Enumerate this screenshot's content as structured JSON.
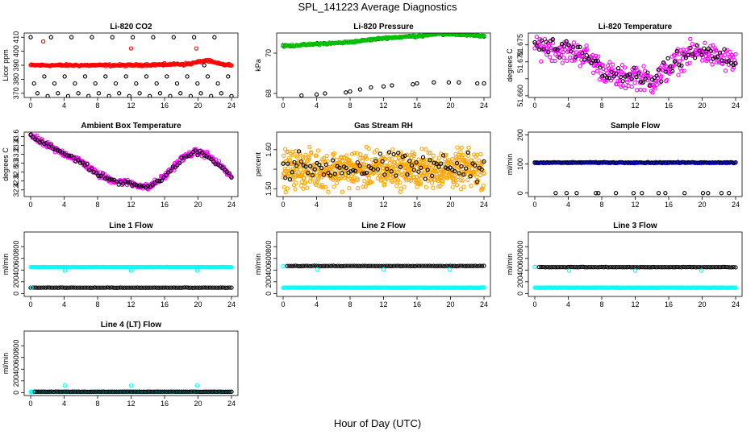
{
  "title": "SPL_141223  Average Diagnostics",
  "x_axis_label": "Hour of Day (UTC)",
  "chart_data": [
    {
      "id": "co2",
      "type": "scatter",
      "title": "Li-820 CO2",
      "ylabel": "Licor ppm",
      "xlim": [
        0,
        24
      ],
      "ylim": [
        367,
        413
      ],
      "xticks": [
        0,
        4,
        8,
        12,
        16,
        20,
        24
      ],
      "yticks": [
        370,
        380,
        390,
        400,
        410
      ],
      "series": [
        {
          "name": "black-circles",
          "color": "#000000",
          "model": "cycle",
          "levels": [
            410,
            377,
            370,
            390,
            382,
            368
          ],
          "n": 60
        },
        {
          "name": "red-circles",
          "color": "#ff0000",
          "model": "trend",
          "kx": [
            0,
            12,
            19,
            21,
            22.5,
            24
          ],
          "ky": [
            390,
            390,
            391,
            393.5,
            391,
            390
          ],
          "jitter": 0.6,
          "n": 220
        },
        {
          "name": "red-outliers",
          "color": "#ff0000",
          "model": "points",
          "x": [
            1.5,
            12,
            19.8
          ],
          "y": [
            407,
            402,
            402
          ]
        }
      ]
    },
    {
      "id": "pressure",
      "type": "scatter",
      "title": "Li-820 Pressure",
      "ylabel": "kPa",
      "xlim": [
        0,
        24
      ],
      "ylim": [
        67.8,
        71.0
      ],
      "xticks": [
        0,
        4,
        8,
        12,
        16,
        20,
        24
      ],
      "yticks": [
        68,
        70
      ],
      "series": [
        {
          "name": "black-circles",
          "color": "#000000",
          "model": "points",
          "x": [
            2.2,
            4,
            5,
            7.5,
            8,
            9.2,
            10.5,
            12,
            13,
            15.5,
            16,
            18,
            19.8,
            21,
            23.2,
            24
          ],
          "y": [
            67.9,
            67.95,
            68.0,
            68.05,
            68.1,
            68.2,
            68.3,
            68.35,
            68.4,
            68.45,
            68.5,
            68.55,
            68.55,
            68.55,
            68.5,
            68.5
          ]
        },
        {
          "name": "black-trend",
          "color": "#000000",
          "model": "trend",
          "kx": [
            0,
            4,
            8,
            12,
            16,
            18,
            20,
            24
          ],
          "ky": [
            70.35,
            70.45,
            70.55,
            70.75,
            70.85,
            70.95,
            70.95,
            70.85
          ],
          "jitter": 0.03,
          "n": 60
        },
        {
          "name": "green-circles",
          "color": "#00c000",
          "model": "trend",
          "kx": [
            0,
            4,
            8,
            12,
            16,
            18,
            20,
            24
          ],
          "ky": [
            70.35,
            70.45,
            70.55,
            70.75,
            70.85,
            70.95,
            70.95,
            70.85
          ],
          "jitter": 0.04,
          "n": 200
        }
      ]
    },
    {
      "id": "temperature",
      "type": "scatter",
      "title": "Li-820 Temperature",
      "ylabel": "degrees C",
      "xlim": [
        0,
        24
      ],
      "ylim": [
        51.6595,
        51.6785
      ],
      "xticks": [
        0,
        4,
        8,
        12,
        16,
        20,
        24
      ],
      "yticks": [
        51.66,
        51.665,
        51.67,
        51.675
      ],
      "ytick_labels": [
        "51.660",
        "",
        "51.670",
        "51.675"
      ],
      "series": [
        {
          "name": "magenta-circles",
          "color": "#ff00ff",
          "model": "trend",
          "kx": [
            0,
            2,
            4,
            6,
            8,
            10,
            12,
            14,
            16,
            18,
            20,
            22,
            24
          ],
          "ky": [
            51.675,
            51.674,
            51.673,
            51.672,
            51.668,
            51.665,
            51.666,
            51.664,
            51.668,
            51.672,
            51.673,
            51.671,
            51.67
          ],
          "jitter": 0.003,
          "n": 320
        },
        {
          "name": "black-circles",
          "color": "#000000",
          "model": "trend",
          "kx": [
            0,
            2,
            4,
            6,
            8,
            10,
            12,
            14,
            16,
            18,
            20,
            22,
            24
          ],
          "ky": [
            51.675,
            51.674,
            51.673,
            51.672,
            51.668,
            51.665,
            51.666,
            51.664,
            51.668,
            51.672,
            51.673,
            51.671,
            51.67
          ],
          "jitter": 0.0025,
          "n": 90
        }
      ]
    },
    {
      "id": "ambient",
      "type": "scatter",
      "title": "Ambient Box Temperature",
      "ylabel": "degrees C",
      "xlim": [
        0,
        24
      ],
      "ylim": [
        32.25,
        33.7
      ],
      "xticks": [
        0,
        4,
        8,
        12,
        16,
        20,
        24
      ],
      "yticks": [
        32.4,
        32.6,
        32.8,
        33.0,
        33.2,
        33.4,
        33.6
      ],
      "series": [
        {
          "name": "magenta-circles",
          "color": "#ff00ff",
          "model": "trend",
          "kx": [
            0,
            1,
            3,
            6,
            8,
            10,
            12,
            14,
            16,
            18,
            19.5,
            21,
            23,
            24
          ],
          "ky": [
            33.65,
            33.5,
            33.3,
            33.05,
            32.75,
            32.6,
            32.55,
            32.45,
            32.7,
            33.1,
            33.25,
            33.2,
            32.9,
            32.65
          ],
          "jitter": 0.06,
          "n": 320
        },
        {
          "name": "black-circles",
          "color": "#000000",
          "model": "trend",
          "kx": [
            0,
            1,
            3,
            6,
            8,
            10,
            12,
            14,
            16,
            18,
            19.5,
            21,
            23,
            24
          ],
          "ky": [
            33.65,
            33.5,
            33.3,
            33.05,
            32.75,
            32.6,
            32.55,
            32.45,
            32.7,
            33.1,
            33.25,
            33.2,
            32.9,
            32.65
          ],
          "jitter": 0.05,
          "n": 90
        }
      ]
    },
    {
      "id": "rh",
      "type": "scatter",
      "title": "Gas Stream RH",
      "ylabel": "percent",
      "xlim": [
        0,
        24
      ],
      "ylim": [
        1.48,
        1.645
      ],
      "xticks": [
        0,
        4,
        8,
        12,
        16,
        20,
        24
      ],
      "yticks": [
        1.5,
        1.55,
        1.6
      ],
      "ytick_labels": [
        "1.50",
        "",
        "1.60"
      ],
      "series": [
        {
          "name": "orange-circles",
          "color": "#ffa500",
          "model": "trend",
          "kx": [
            0,
            24
          ],
          "ky": [
            1.55,
            1.55
          ],
          "jitter": 0.04,
          "n": 700
        },
        {
          "name": "black-circles",
          "color": "#000000",
          "model": "trend",
          "kx": [
            0,
            24
          ],
          "ky": [
            1.555,
            1.555
          ],
          "jitter": 0.03,
          "n": 90
        }
      ]
    },
    {
      "id": "sample_flow",
      "type": "scatter",
      "title": "Sample Flow",
      "ylabel": "ml/min",
      "xlim": [
        0,
        24
      ],
      "ylim": [
        -12,
        210
      ],
      "xticks": [
        0,
        4,
        8,
        12,
        16,
        20,
        24
      ],
      "yticks": [
        0,
        100,
        200
      ],
      "series": [
        {
          "name": "blue-circles",
          "color": "#0000ff",
          "model": "trend",
          "kx": [
            0,
            24
          ],
          "ky": [
            105,
            105
          ],
          "jitter": 1.5,
          "n": 200
        },
        {
          "name": "black-circles",
          "color": "#000000",
          "model": "trend",
          "kx": [
            0,
            24
          ],
          "ky": [
            105,
            105
          ],
          "jitter": 1,
          "n": 70
        },
        {
          "name": "black-zeros",
          "color": "#000000",
          "model": "points",
          "x": [
            2.5,
            3.8,
            5,
            7.3,
            7.6,
            9.7,
            11.8,
            12.8,
            14.8,
            15.6,
            17.9,
            20.1,
            20.7,
            22.3,
            23.2
          ],
          "y": [
            0,
            0,
            0,
            0,
            0,
            0,
            0,
            0,
            0,
            0,
            0,
            0,
            0,
            0,
            0
          ]
        }
      ]
    },
    {
      "id": "line1",
      "type": "scatter",
      "title": "Line 1 Flow",
      "ylabel": "ml/min",
      "xlim": [
        0,
        24
      ],
      "ylim": [
        -50,
        1050
      ],
      "xticks": [
        0,
        4,
        8,
        12,
        16,
        20,
        24
      ],
      "yticks": [
        0,
        200,
        400,
        600,
        800
      ],
      "series": [
        {
          "name": "cyan-high",
          "color": "#00ffff",
          "model": "trend",
          "kx": [
            0,
            24
          ],
          "ky": [
            450,
            450
          ],
          "jitter": 3,
          "n": 200
        },
        {
          "name": "cyan-dips",
          "color": "#00ffff",
          "model": "points",
          "x": [
            4.1,
            12,
            19.9
          ],
          "y": [
            390,
            390,
            390
          ]
        },
        {
          "name": "black-low",
          "color": "#000000",
          "model": "trend",
          "kx": [
            0,
            24
          ],
          "ky": [
            100,
            100
          ],
          "jitter": 2,
          "n": 95
        },
        {
          "name": "cyan-low",
          "color": "#00ffff",
          "model": "points",
          "x": [
            0.1
          ],
          "y": [
            100
          ]
        }
      ]
    },
    {
      "id": "line2",
      "type": "scatter",
      "title": "Line 2 Flow",
      "ylabel": "ml/min",
      "xlim": [
        0,
        24
      ],
      "ylim": [
        -50,
        1050
      ],
      "xticks": [
        0,
        4,
        8,
        12,
        16,
        20,
        24
      ],
      "yticks": [
        0,
        200,
        400,
        600,
        800
      ],
      "series": [
        {
          "name": "cyan-low",
          "color": "#00ffff",
          "model": "trend",
          "kx": [
            0,
            24
          ],
          "ky": [
            100,
            100
          ],
          "jitter": 3,
          "n": 200
        },
        {
          "name": "black-high",
          "color": "#000000",
          "model": "trend",
          "kx": [
            0.5,
            24
          ],
          "ky": [
            470,
            470
          ],
          "jitter": 3,
          "n": 95
        },
        {
          "name": "cyan-dips",
          "color": "#00ffff",
          "model": "points",
          "x": [
            0,
            4.1,
            12,
            19.9
          ],
          "y": [
            465,
            410,
            410,
            410
          ]
        }
      ]
    },
    {
      "id": "line3",
      "type": "scatter",
      "title": "Line 3 Flow",
      "ylabel": "ml/min",
      "xlim": [
        0,
        24
      ],
      "ylim": [
        -50,
        1050
      ],
      "xticks": [
        0,
        4,
        8,
        12,
        16,
        20,
        24
      ],
      "yticks": [
        0,
        200,
        400,
        600,
        800
      ],
      "series": [
        {
          "name": "cyan-low",
          "color": "#00ffff",
          "model": "trend",
          "kx": [
            0,
            24
          ],
          "ky": [
            100,
            100
          ],
          "jitter": 3,
          "n": 200
        },
        {
          "name": "black-high",
          "color": "#000000",
          "model": "trend",
          "kx": [
            0.5,
            24
          ],
          "ky": [
            450,
            450
          ],
          "jitter": 3,
          "n": 95
        },
        {
          "name": "cyan-dips",
          "color": "#00ffff",
          "model": "points",
          "x": [
            0,
            4.1,
            12,
            19.9
          ],
          "y": [
            455,
            390,
            390,
            390
          ]
        }
      ]
    },
    {
      "id": "line4",
      "type": "scatter",
      "title": "Line 4 (LT) Flow",
      "ylabel": "ml/min",
      "xlim": [
        0,
        24
      ],
      "ylim": [
        -50,
        1050
      ],
      "xticks": [
        0,
        4,
        8,
        12,
        16,
        20,
        24
      ],
      "yticks": [
        0,
        200,
        400,
        600,
        800
      ],
      "series": [
        {
          "name": "cyan-low",
          "color": "#00ffff",
          "model": "trend",
          "kx": [
            0,
            24
          ],
          "ky": [
            15,
            15
          ],
          "jitter": 2,
          "n": 200
        },
        {
          "name": "black-low",
          "color": "#000000",
          "model": "trend",
          "kx": [
            0.5,
            24
          ],
          "ky": [
            15,
            15
          ],
          "jitter": 2,
          "n": 95
        },
        {
          "name": "cyan-spikes",
          "color": "#00ffff",
          "model": "points",
          "x": [
            4.1,
            12,
            19.9
          ],
          "y": [
            120,
            120,
            120
          ]
        }
      ]
    }
  ]
}
